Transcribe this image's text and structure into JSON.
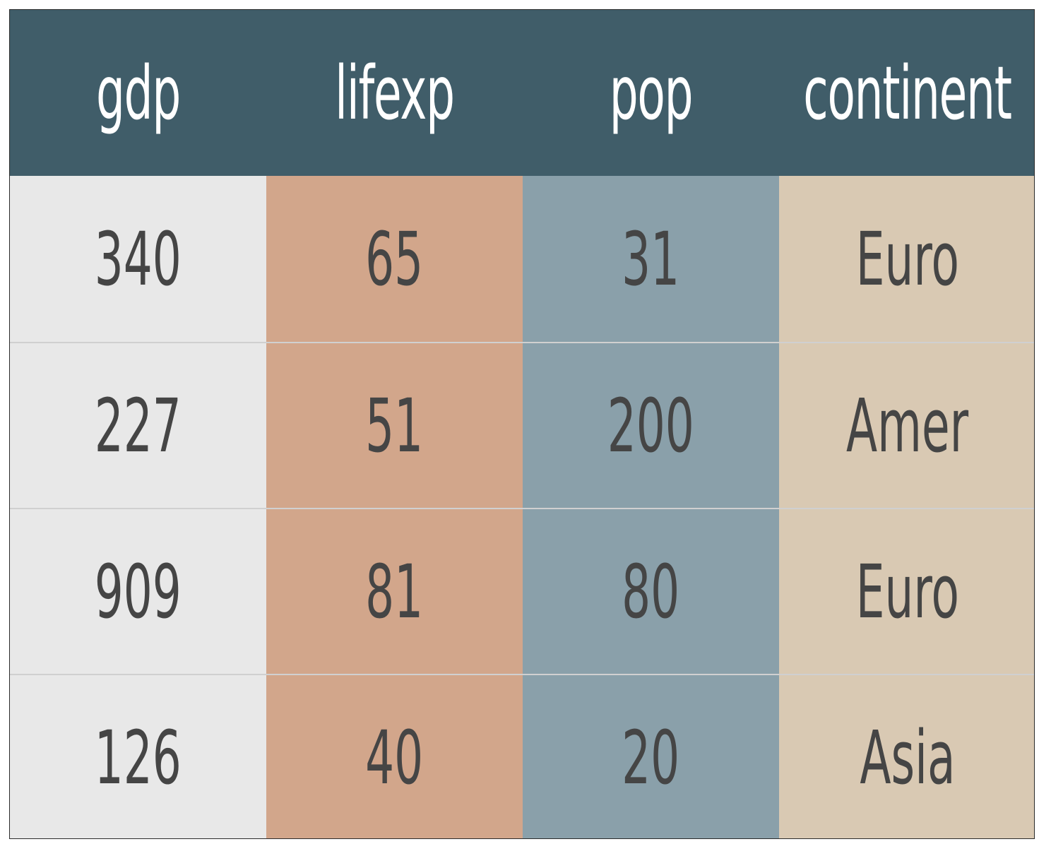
{
  "chart_data": {
    "type": "table",
    "columns": [
      "gdp",
      "lifexp",
      "pop",
      "continent"
    ],
    "rows": [
      [
        "340",
        "65",
        "31",
        "Euro"
      ],
      [
        "227",
        "51",
        "200",
        "Amer"
      ],
      [
        "909",
        "81",
        "80",
        "Euro"
      ],
      [
        "126",
        "40",
        "20",
        "Asia"
      ]
    ],
    "colors": {
      "header_background": "#405d69",
      "header_text": "#ffffff",
      "cell_text": "#454545",
      "column_backgrounds": [
        "#e8e8e8",
        "#d2a68b",
        "#8aa0aa",
        "#d9c9b3"
      ]
    }
  }
}
